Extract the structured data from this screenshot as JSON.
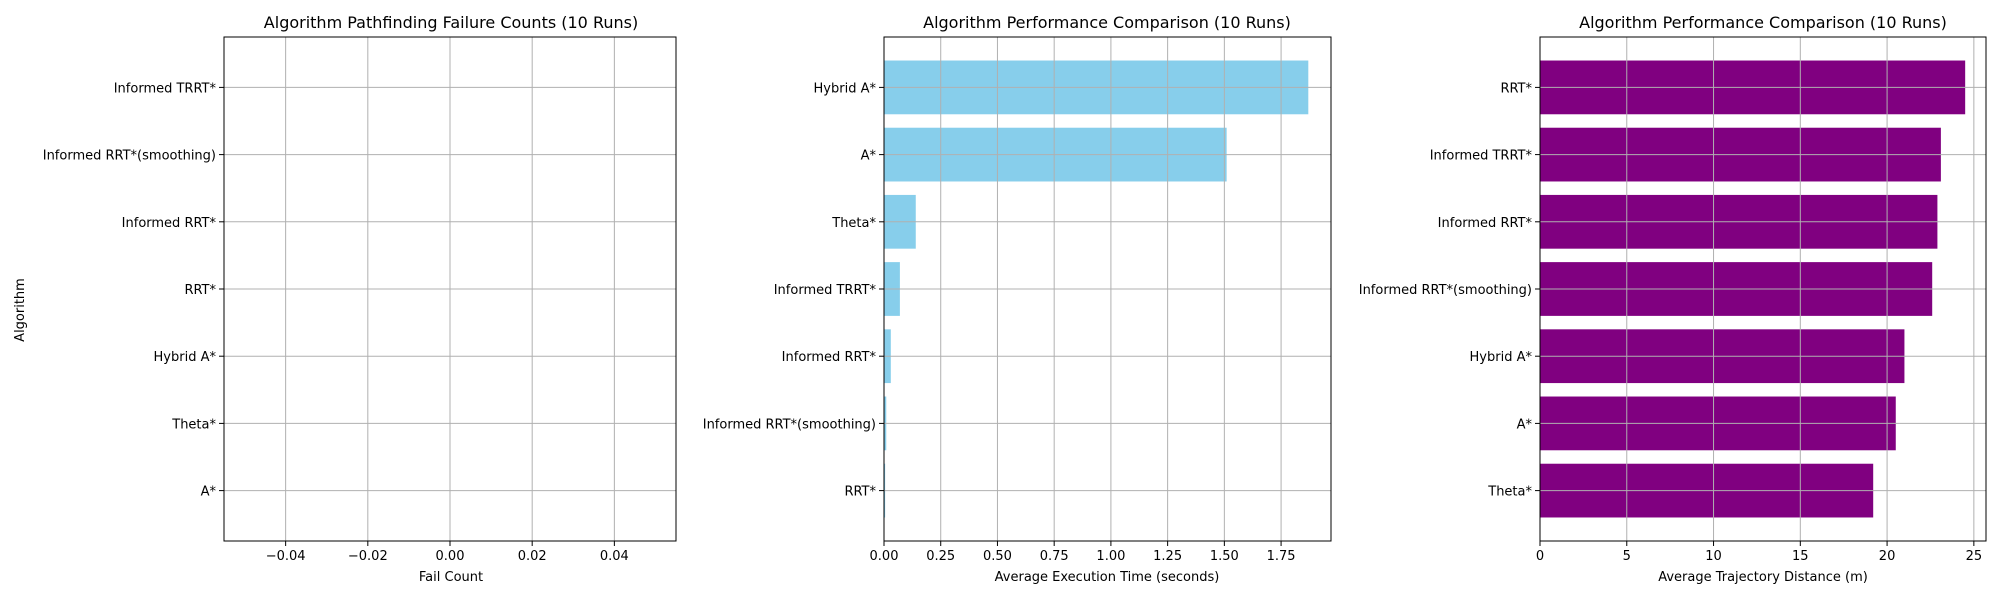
{
  "figure": {
    "background": "#ffffff",
    "grid_color": "#b0b0b0"
  },
  "chart_data": [
    {
      "type": "bar",
      "orientation": "horizontal",
      "title": "Algorithm Pathfinding Failure Counts (10 Runs)",
      "xlabel": "Fail Count",
      "ylabel": "Algorithm",
      "categories": [
        "A*",
        "Theta*",
        "Hybrid A*",
        "RRT*",
        "Informed RRT*",
        "Informed RRT*(smoothing)",
        "Informed TRRT*"
      ],
      "values": [
        0,
        0,
        0,
        0,
        0,
        0,
        0
      ],
      "xlim": [
        -0.055,
        0.055
      ],
      "xticks": [
        -0.04,
        -0.02,
        0.0,
        0.02,
        0.04
      ],
      "xtick_labels": [
        "−0.04",
        "−0.02",
        "0.00",
        "0.02",
        "0.04"
      ],
      "grid": true,
      "color": "#87ceeb"
    },
    {
      "type": "bar",
      "orientation": "horizontal",
      "title": "Algorithm Performance Comparison (10 Runs)",
      "xlabel": "Average Execution Time (seconds)",
      "ylabel": "",
      "categories": [
        "RRT*",
        "Informed RRT*(smoothing)",
        "Informed RRT*",
        "Informed TRRT*",
        "Theta*",
        "A*",
        "Hybrid A*"
      ],
      "values": [
        0.005,
        0.01,
        0.03,
        0.07,
        0.14,
        1.51,
        1.87
      ],
      "xlim": [
        0,
        1.97
      ],
      "xticks": [
        0,
        0.25,
        0.5,
        0.75,
        1.0,
        1.25,
        1.5,
        1.75
      ],
      "xtick_labels": [
        "0.00",
        "0.25",
        "0.50",
        "0.75",
        "1.00",
        "1.25",
        "1.50",
        "1.75"
      ],
      "grid": true,
      "color": "#87ceeb"
    },
    {
      "type": "bar",
      "orientation": "horizontal",
      "title": "Algorithm Performance Comparison (10 Runs)",
      "xlabel": "Average Trajectory Distance (m)",
      "ylabel": "",
      "categories": [
        "Theta*",
        "A*",
        "Hybrid A*",
        "Informed RRT*(smoothing)",
        "Informed RRT*",
        "Informed TRRT*",
        "RRT*"
      ],
      "values": [
        19.2,
        20.5,
        21.0,
        22.6,
        22.9,
        23.1,
        24.5
      ],
      "xlim": [
        0,
        25.7
      ],
      "xticks": [
        0,
        5,
        10,
        15,
        20,
        25
      ],
      "xtick_labels": [
        "0",
        "5",
        "10",
        "15",
        "20",
        "25"
      ],
      "grid": true,
      "color": "#800080"
    }
  ]
}
